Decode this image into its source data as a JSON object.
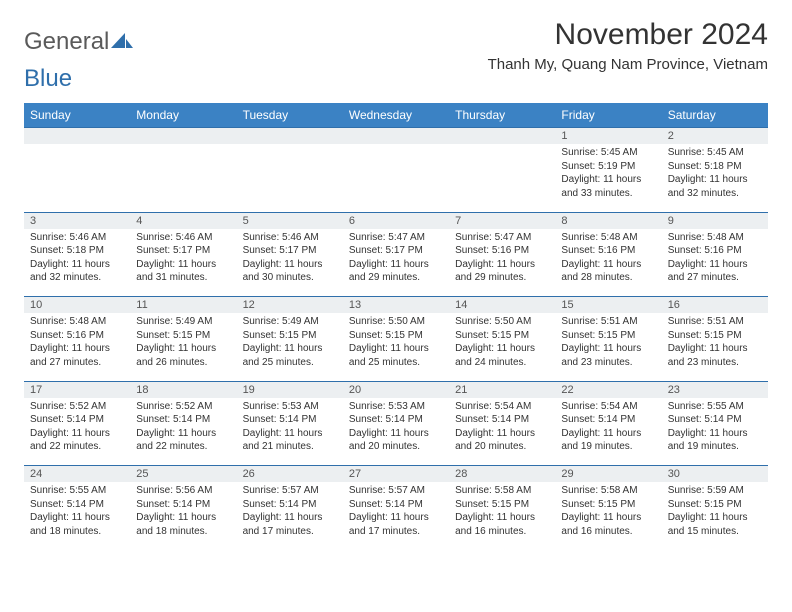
{
  "logo": {
    "text1": "General",
    "text2": "Blue"
  },
  "title": "November 2024",
  "location": "Thanh My, Quang Nam Province, Vietnam",
  "colors": {
    "header_bg": "#3b82c4",
    "header_text": "#ffffff",
    "daynum_bg": "#eceff1",
    "border": "#2f6fab",
    "logo_gray": "#5a5a5a",
    "logo_blue": "#2f6fab",
    "text": "#333333"
  },
  "weekdays": [
    "Sunday",
    "Monday",
    "Tuesday",
    "Wednesday",
    "Thursday",
    "Friday",
    "Saturday"
  ],
  "weeks": [
    [
      null,
      null,
      null,
      null,
      null,
      {
        "n": "1",
        "sr": "5:45 AM",
        "ss": "5:19 PM",
        "dl": "11 hours and 33 minutes."
      },
      {
        "n": "2",
        "sr": "5:45 AM",
        "ss": "5:18 PM",
        "dl": "11 hours and 32 minutes."
      }
    ],
    [
      {
        "n": "3",
        "sr": "5:46 AM",
        "ss": "5:18 PM",
        "dl": "11 hours and 32 minutes."
      },
      {
        "n": "4",
        "sr": "5:46 AM",
        "ss": "5:17 PM",
        "dl": "11 hours and 31 minutes."
      },
      {
        "n": "5",
        "sr": "5:46 AM",
        "ss": "5:17 PM",
        "dl": "11 hours and 30 minutes."
      },
      {
        "n": "6",
        "sr": "5:47 AM",
        "ss": "5:17 PM",
        "dl": "11 hours and 29 minutes."
      },
      {
        "n": "7",
        "sr": "5:47 AM",
        "ss": "5:16 PM",
        "dl": "11 hours and 29 minutes."
      },
      {
        "n": "8",
        "sr": "5:48 AM",
        "ss": "5:16 PM",
        "dl": "11 hours and 28 minutes."
      },
      {
        "n": "9",
        "sr": "5:48 AM",
        "ss": "5:16 PM",
        "dl": "11 hours and 27 minutes."
      }
    ],
    [
      {
        "n": "10",
        "sr": "5:48 AM",
        "ss": "5:16 PM",
        "dl": "11 hours and 27 minutes."
      },
      {
        "n": "11",
        "sr": "5:49 AM",
        "ss": "5:15 PM",
        "dl": "11 hours and 26 minutes."
      },
      {
        "n": "12",
        "sr": "5:49 AM",
        "ss": "5:15 PM",
        "dl": "11 hours and 25 minutes."
      },
      {
        "n": "13",
        "sr": "5:50 AM",
        "ss": "5:15 PM",
        "dl": "11 hours and 25 minutes."
      },
      {
        "n": "14",
        "sr": "5:50 AM",
        "ss": "5:15 PM",
        "dl": "11 hours and 24 minutes."
      },
      {
        "n": "15",
        "sr": "5:51 AM",
        "ss": "5:15 PM",
        "dl": "11 hours and 23 minutes."
      },
      {
        "n": "16",
        "sr": "5:51 AM",
        "ss": "5:15 PM",
        "dl": "11 hours and 23 minutes."
      }
    ],
    [
      {
        "n": "17",
        "sr": "5:52 AM",
        "ss": "5:14 PM",
        "dl": "11 hours and 22 minutes."
      },
      {
        "n": "18",
        "sr": "5:52 AM",
        "ss": "5:14 PM",
        "dl": "11 hours and 22 minutes."
      },
      {
        "n": "19",
        "sr": "5:53 AM",
        "ss": "5:14 PM",
        "dl": "11 hours and 21 minutes."
      },
      {
        "n": "20",
        "sr": "5:53 AM",
        "ss": "5:14 PM",
        "dl": "11 hours and 20 minutes."
      },
      {
        "n": "21",
        "sr": "5:54 AM",
        "ss": "5:14 PM",
        "dl": "11 hours and 20 minutes."
      },
      {
        "n": "22",
        "sr": "5:54 AM",
        "ss": "5:14 PM",
        "dl": "11 hours and 19 minutes."
      },
      {
        "n": "23",
        "sr": "5:55 AM",
        "ss": "5:14 PM",
        "dl": "11 hours and 19 minutes."
      }
    ],
    [
      {
        "n": "24",
        "sr": "5:55 AM",
        "ss": "5:14 PM",
        "dl": "11 hours and 18 minutes."
      },
      {
        "n": "25",
        "sr": "5:56 AM",
        "ss": "5:14 PM",
        "dl": "11 hours and 18 minutes."
      },
      {
        "n": "26",
        "sr": "5:57 AM",
        "ss": "5:14 PM",
        "dl": "11 hours and 17 minutes."
      },
      {
        "n": "27",
        "sr": "5:57 AM",
        "ss": "5:14 PM",
        "dl": "11 hours and 17 minutes."
      },
      {
        "n": "28",
        "sr": "5:58 AM",
        "ss": "5:15 PM",
        "dl": "11 hours and 16 minutes."
      },
      {
        "n": "29",
        "sr": "5:58 AM",
        "ss": "5:15 PM",
        "dl": "11 hours and 16 minutes."
      },
      {
        "n": "30",
        "sr": "5:59 AM",
        "ss": "5:15 PM",
        "dl": "11 hours and 15 minutes."
      }
    ]
  ],
  "labels": {
    "sunrise": "Sunrise:",
    "sunset": "Sunset:",
    "daylight": "Daylight:"
  }
}
